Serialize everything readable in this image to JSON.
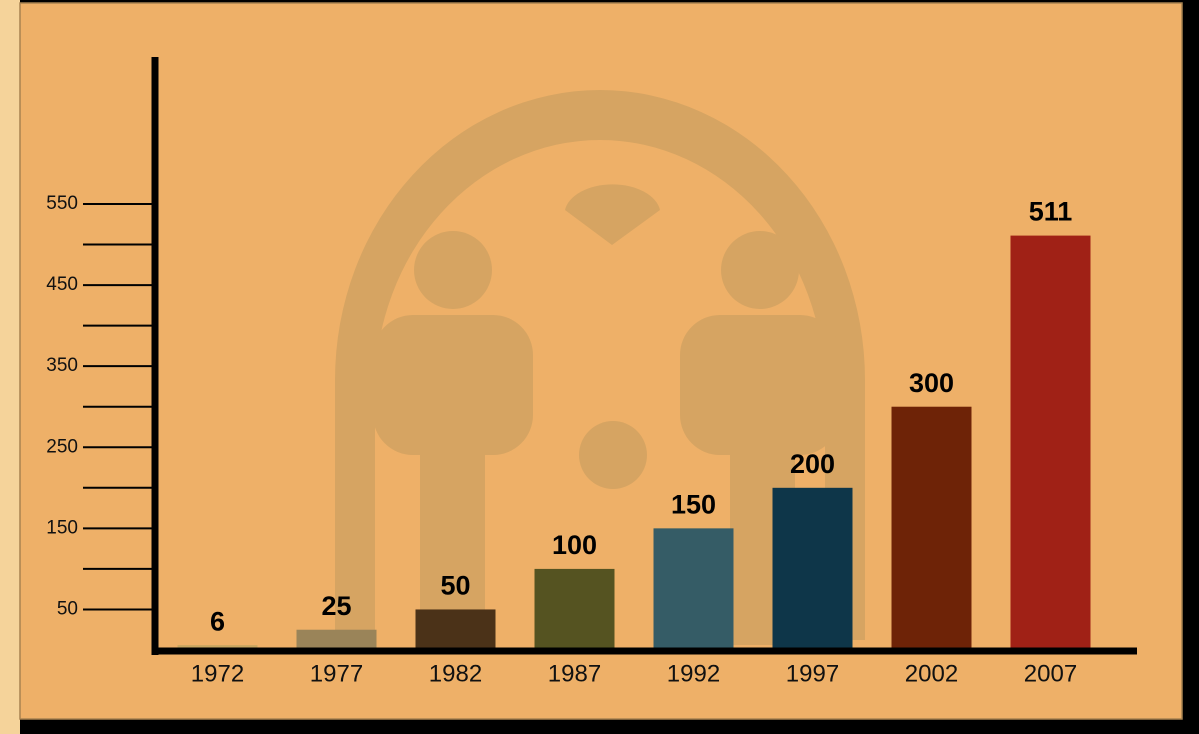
{
  "chart_data": {
    "type": "bar",
    "categories": [
      "1972",
      "1977",
      "1982",
      "1987",
      "1992",
      "1997",
      "2002",
      "2007"
    ],
    "values": [
      6,
      25,
      50,
      100,
      150,
      200,
      300,
      511
    ],
    "colors": [
      "#c9a660",
      "#9a8459",
      "#4b3218",
      "#555321",
      "#355c66",
      "#0e3649",
      "#6e2307",
      "#a02116"
    ],
    "ylim": [
      0,
      730
    ],
    "yticks": [
      50,
      150,
      250,
      350,
      450,
      550
    ],
    "yminorticks": [
      100,
      200,
      300,
      400,
      500
    ]
  }
}
